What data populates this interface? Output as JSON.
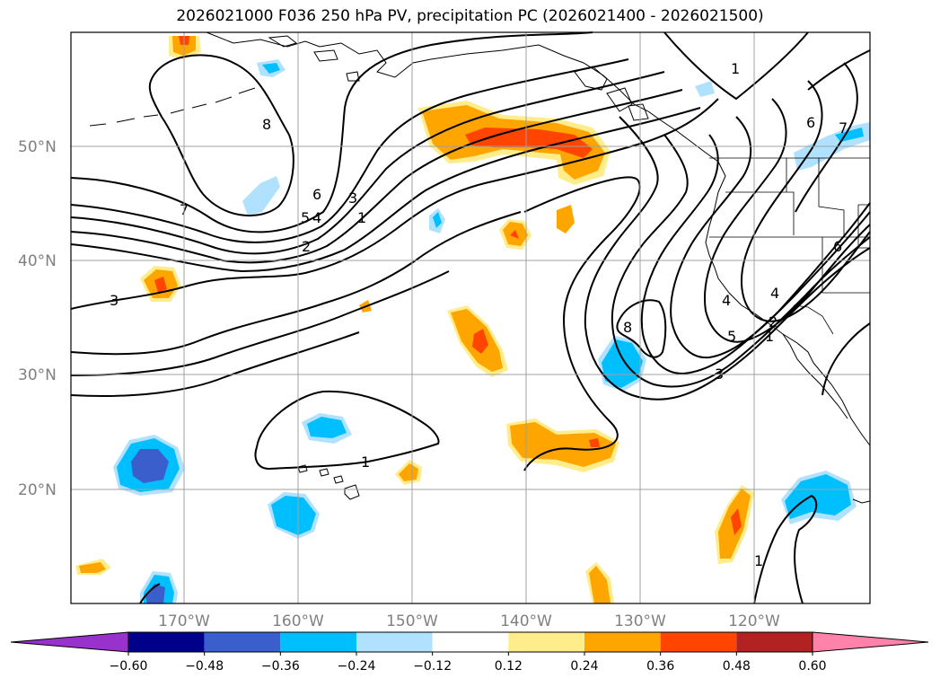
{
  "title": "2026021000 F036 250 hPa PV, precipitation PC (2026021400 - 2026021500)",
  "axes": {
    "lat_labels": [
      "50°N",
      "40°N",
      "30°N",
      "20°N"
    ],
    "lon_labels": [
      "170°W",
      "160°W",
      "150°W",
      "140°W",
      "130°W",
      "120°W"
    ]
  },
  "contour_labels": [
    "8",
    "7",
    "6",
    "5",
    "4",
    "3",
    "2",
    "1",
    "3",
    "1",
    "8",
    "1",
    "6",
    "7",
    "3",
    "5",
    "4",
    "2",
    "1",
    "6",
    "1",
    "4"
  ],
  "colorbar": {
    "ticks": [
      "−0.60",
      "−0.48",
      "−0.36",
      "−0.24",
      "−0.12",
      "0.12",
      "0.24",
      "0.36",
      "0.48",
      "0.60"
    ],
    "colors": [
      "#9932cc",
      "#00008b",
      "#3a5fcd",
      "#00bfff",
      "#b0e2ff",
      "#ffffff",
      "#ffec8b",
      "#ffa500",
      "#ff4500",
      "#b22222",
      "#ff82ab"
    ]
  }
}
